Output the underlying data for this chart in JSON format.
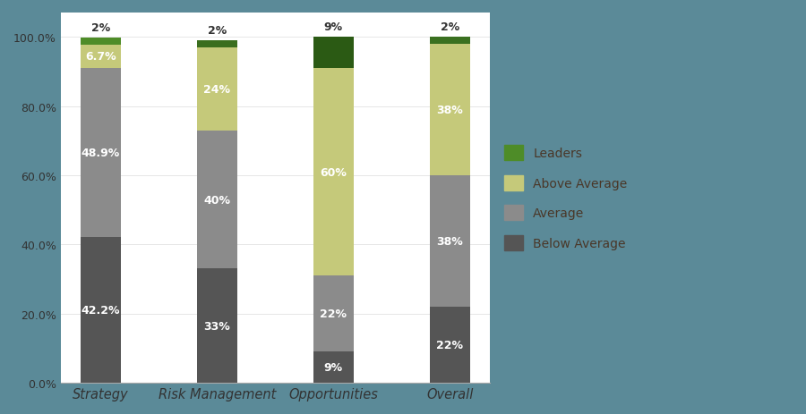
{
  "categories": [
    "Strategy",
    "Risk Management",
    "Opportunities",
    "Overall"
  ],
  "below_average": [
    42.2,
    33,
    9,
    22
  ],
  "average": [
    48.9,
    40,
    22,
    38
  ],
  "above_average": [
    6.7,
    24,
    60,
    38
  ],
  "leaders": [
    2,
    2,
    9,
    2
  ],
  "labels_below": [
    "42.2%",
    "33%",
    "9%",
    "22%"
  ],
  "labels_average": [
    "48.9%",
    "40%",
    "22%",
    "38%"
  ],
  "labels_above": [
    "6.7%",
    "24%",
    "60%",
    "38%"
  ],
  "labels_leaders": [
    "2%",
    "2%",
    "9%",
    "2%"
  ],
  "color_below": "#555555",
  "color_average": "#8B8B8B",
  "color_above": "#C5C97A",
  "color_leaders": [
    "#4E8C28",
    "#3A6E1E",
    "#2B5A14",
    "#3A7020"
  ],
  "background_color": "#5B8A98",
  "plot_bg": "#FFFFFF",
  "text_color": "#4A3728",
  "legend_labels": [
    "Leaders",
    "Above Average",
    "Average",
    "Below Average"
  ],
  "legend_colors": [
    "#4E8C28",
    "#C5C97A",
    "#8B8B8B",
    "#555555"
  ],
  "ylim": [
    0,
    107
  ],
  "bar_width": 0.35
}
